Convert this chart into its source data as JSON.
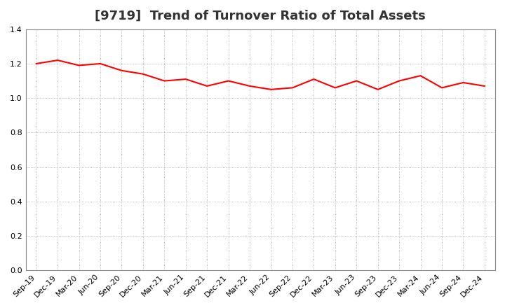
{
  "title": "[9719]  Trend of Turnover Ratio of Total Assets",
  "labels": [
    "Sep-19",
    "Dec-19",
    "Mar-20",
    "Jun-20",
    "Sep-20",
    "Dec-20",
    "Mar-21",
    "Jun-21",
    "Sep-21",
    "Dec-21",
    "Mar-22",
    "Jun-22",
    "Sep-22",
    "Dec-22",
    "Mar-23",
    "Jun-23",
    "Sep-23",
    "Dec-23",
    "Mar-24",
    "Jun-24",
    "Sep-24",
    "Dec-24"
  ],
  "values": [
    1.2,
    1.22,
    1.19,
    1.2,
    1.16,
    1.14,
    1.1,
    1.11,
    1.07,
    1.1,
    1.07,
    1.05,
    1.06,
    1.11,
    1.06,
    1.1,
    1.05,
    1.1,
    1.13,
    1.06,
    1.09,
    1.07
  ],
  "line_color": "#FF0000",
  "line_width": 1.5,
  "ylim": [
    0.0,
    1.4
  ],
  "yticks": [
    0.0,
    0.2,
    0.4,
    0.6,
    0.8,
    1.0,
    1.2,
    1.4
  ],
  "background_color": "#ffffff",
  "grid_color": "#aaaaaa",
  "title_fontsize": 13,
  "tick_fontsize": 8,
  "title_color": "#333333"
}
